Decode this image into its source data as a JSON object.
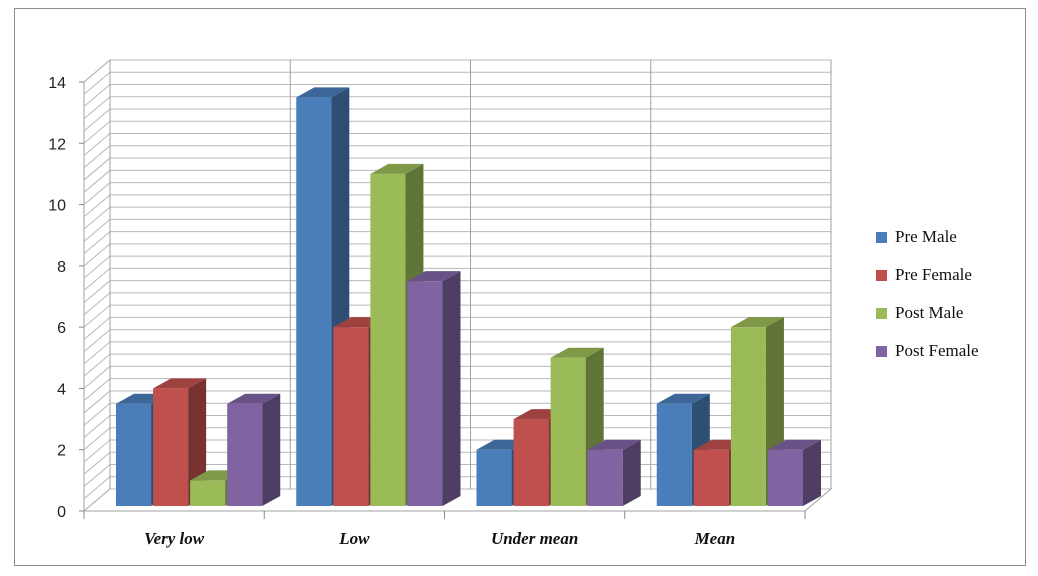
{
  "chart_data": {
    "type": "bar",
    "categories": [
      "Very low",
      "Low",
      "Under mean",
      "Mean"
    ],
    "series": [
      {
        "name": "Pre Male",
        "color": "#4a7ebb",
        "values": [
          3.5,
          13.5,
          2,
          3.5
        ]
      },
      {
        "name": "Pre Female",
        "color": "#c0504d",
        "values": [
          4,
          6,
          3,
          2
        ]
      },
      {
        "name": "Post Male",
        "color": "#9bbb59",
        "values": [
          1,
          11,
          5,
          6
        ]
      },
      {
        "name": "Post Female",
        "color": "#8064a2",
        "values": [
          3.5,
          7.5,
          2,
          2
        ]
      }
    ],
    "ylim": [
      0,
      14
    ],
    "yticks": [
      "0",
      "2",
      "4",
      "6",
      "8",
      "10",
      "12",
      "14"
    ],
    "minor_grid_step": 0.4,
    "grid": true,
    "legend_position": "right",
    "style": "3d-clustered-column"
  }
}
